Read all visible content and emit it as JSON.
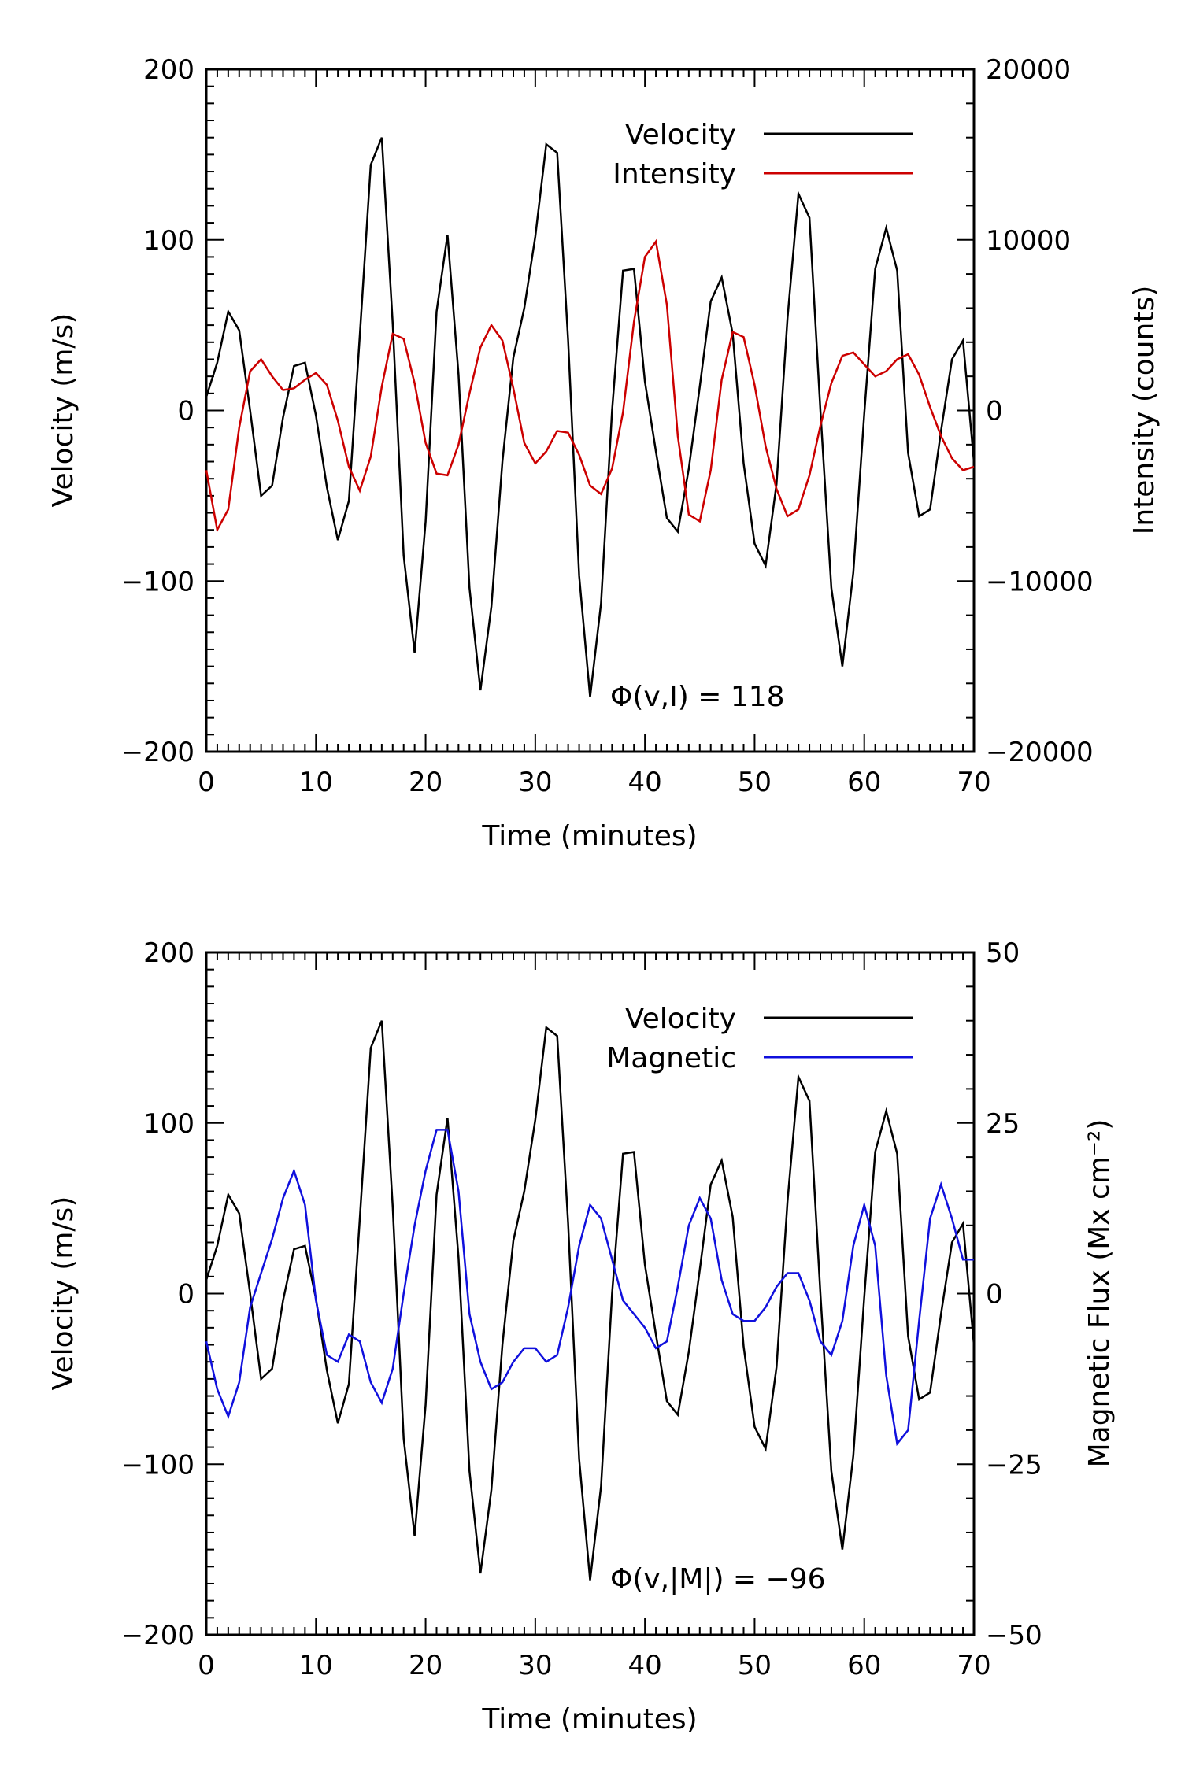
{
  "chart_data": [
    {
      "type": "line",
      "xlabel": "Time (minutes)",
      "ylabel": "Velocity (m/s)",
      "y2label": "Intensity (counts)",
      "xlim": [
        0,
        70
      ],
      "ylim": [
        -200,
        200
      ],
      "y2lim": [
        -20000,
        20000
      ],
      "xticks": [
        0,
        10,
        20,
        30,
        40,
        50,
        60,
        70
      ],
      "xtick_labels": [
        "0",
        "10",
        "20",
        "30",
        "40",
        "50",
        "60",
        "70"
      ],
      "yticks": [
        -200,
        -100,
        0,
        100,
        200
      ],
      "ytick_labels": [
        "−200",
        "−100",
        "0",
        "100",
        "200"
      ],
      "y2ticks": [
        -20000,
        -10000,
        0,
        10000,
        20000
      ],
      "y2tick_labels": [
        "−20000",
        "−10000",
        "0",
        "10000",
        "20000"
      ],
      "annotation": "Φ(v,I) = 118",
      "legend_position": "top-right",
      "series": [
        {
          "name": "Velocity",
          "color": "#000000",
          "axis": "left",
          "x": [
            0,
            1,
            2,
            3,
            4,
            5,
            6,
            7,
            8,
            9,
            10,
            11,
            12,
            13,
            14,
            15,
            16,
            17,
            18,
            19,
            20,
            21,
            22,
            23,
            24,
            25,
            26,
            27,
            28,
            29,
            30,
            31,
            32,
            33,
            34,
            35,
            36,
            37,
            38,
            39,
            40,
            41,
            42,
            43,
            44,
            45,
            46,
            47,
            48,
            49,
            50,
            51,
            52,
            53,
            54,
            55,
            56,
            57,
            58,
            59,
            60,
            61,
            62,
            63,
            64,
            65,
            66,
            67,
            68,
            69,
            70
          ],
          "values": [
            8,
            28,
            58,
            47,
            0,
            -50,
            -44,
            -4,
            26,
            28,
            -3,
            -45,
            -76,
            -53,
            44,
            144,
            160,
            51,
            -85,
            -142,
            -65,
            58,
            103,
            21,
            -104,
            -164,
            -115,
            -30,
            31,
            60,
            102,
            156,
            151,
            41,
            -97,
            -168,
            -113,
            0,
            82,
            83,
            17,
            -24,
            -63,
            -71,
            -34,
            14,
            64,
            78,
            45,
            -31,
            -78,
            -91,
            -43,
            54,
            127,
            113,
            0,
            -104,
            -150,
            -95,
            -2,
            83,
            107,
            82,
            -25,
            -62,
            -58,
            -12,
            30,
            41,
            -30
          ]
        },
        {
          "name": "Intensity",
          "color": "#cc0000",
          "axis": "right",
          "x": [
            0,
            1,
            2,
            3,
            4,
            5,
            6,
            7,
            8,
            9,
            10,
            11,
            12,
            13,
            14,
            15,
            16,
            17,
            18,
            19,
            20,
            21,
            22,
            23,
            24,
            25,
            26,
            27,
            28,
            29,
            30,
            31,
            32,
            33,
            34,
            35,
            36,
            37,
            38,
            39,
            40,
            41,
            42,
            43,
            44,
            45,
            46,
            47,
            48,
            49,
            50,
            51,
            52,
            53,
            54,
            55,
            56,
            57,
            58,
            59,
            60,
            61,
            62,
            63,
            64,
            65,
            66,
            67,
            68,
            69,
            70
          ],
          "values": [
            -3500,
            -7000,
            -5800,
            -1000,
            2300,
            3000,
            2000,
            1200,
            1300,
            1800,
            2200,
            1500,
            -600,
            -3300,
            -4700,
            -2700,
            1400,
            4500,
            4200,
            1600,
            -1900,
            -3700,
            -3800,
            -2000,
            1000,
            3700,
            5000,
            4100,
            1300,
            -1900,
            -3100,
            -2400,
            -1200,
            -1300,
            -2600,
            -4400,
            -4900,
            -3400,
            -100,
            5200,
            9000,
            9900,
            6200,
            -1500,
            -6100,
            -6500,
            -3500,
            1800,
            4600,
            4300,
            1500,
            -2100,
            -4600,
            -6200,
            -5800,
            -3800,
            -900,
            1600,
            3200,
            3400,
            2700,
            2000,
            2300,
            3000,
            3300,
            2100,
            200,
            -1500,
            -2800,
            -3500,
            -3300
          ]
        }
      ]
    },
    {
      "type": "line",
      "xlabel": "Time (minutes)",
      "ylabel": "Velocity (m/s)",
      "y2label": "Magnetic Flux (Mx cm⁻²)",
      "xlim": [
        0,
        70
      ],
      "ylim": [
        -200,
        200
      ],
      "y2lim": [
        -50,
        50
      ],
      "xticks": [
        0,
        10,
        20,
        30,
        40,
        50,
        60,
        70
      ],
      "xtick_labels": [
        "0",
        "10",
        "20",
        "30",
        "40",
        "50",
        "60",
        "70"
      ],
      "yticks": [
        -200,
        -100,
        0,
        100,
        200
      ],
      "ytick_labels": [
        "−200",
        "−100",
        "0",
        "100",
        "200"
      ],
      "y2ticks": [
        -50,
        -25,
        0,
        25,
        50
      ],
      "y2tick_labels": [
        "−50",
        "−25",
        "0",
        "25",
        "50"
      ],
      "annotation": "Φ(v,|M|) = −96",
      "legend_position": "top-right",
      "series": [
        {
          "name": "Velocity",
          "color": "#000000",
          "axis": "left",
          "x": [
            0,
            1,
            2,
            3,
            4,
            5,
            6,
            7,
            8,
            9,
            10,
            11,
            12,
            13,
            14,
            15,
            16,
            17,
            18,
            19,
            20,
            21,
            22,
            23,
            24,
            25,
            26,
            27,
            28,
            29,
            30,
            31,
            32,
            33,
            34,
            35,
            36,
            37,
            38,
            39,
            40,
            41,
            42,
            43,
            44,
            45,
            46,
            47,
            48,
            49,
            50,
            51,
            52,
            53,
            54,
            55,
            56,
            57,
            58,
            59,
            60,
            61,
            62,
            63,
            64,
            65,
            66,
            67,
            68,
            69,
            70
          ],
          "values": [
            8,
            28,
            58,
            47,
            0,
            -50,
            -44,
            -4,
            26,
            28,
            -3,
            -45,
            -76,
            -53,
            44,
            144,
            160,
            51,
            -85,
            -142,
            -65,
            58,
            103,
            21,
            -104,
            -164,
            -115,
            -30,
            31,
            60,
            102,
            156,
            151,
            41,
            -97,
            -168,
            -113,
            0,
            82,
            83,
            17,
            -24,
            -63,
            -71,
            -34,
            14,
            64,
            78,
            45,
            -31,
            -78,
            -91,
            -43,
            54,
            127,
            113,
            0,
            -104,
            -150,
            -95,
            -2,
            83,
            107,
            82,
            -25,
            -62,
            -58,
            -12,
            30,
            41,
            -30
          ]
        },
        {
          "name": "Magnetic",
          "color": "#1010dd",
          "axis": "right",
          "x": [
            0,
            1,
            2,
            3,
            4,
            5,
            6,
            7,
            8,
            9,
            10,
            11,
            12,
            13,
            14,
            15,
            16,
            17,
            18,
            19,
            20,
            21,
            22,
            23,
            24,
            25,
            26,
            27,
            28,
            29,
            30,
            31,
            32,
            33,
            34,
            35,
            36,
            37,
            38,
            39,
            40,
            41,
            42,
            43,
            44,
            45,
            46,
            47,
            48,
            49,
            50,
            51,
            52,
            53,
            54,
            55,
            56,
            57,
            58,
            59,
            60,
            61,
            62,
            63,
            64,
            65,
            66,
            67,
            68,
            69,
            70
          ],
          "values": [
            -7,
            -14,
            -18,
            -13,
            -2,
            3,
            8,
            14,
            18,
            13,
            -1,
            -9,
            -10,
            -6,
            -7,
            -13,
            -16,
            -11,
            0,
            10,
            18,
            24,
            24,
            15,
            -3,
            -10,
            -14,
            -13,
            -10,
            -8,
            -8,
            -10,
            -9,
            -2,
            7,
            13,
            11,
            5,
            -1,
            -3,
            -5,
            -8,
            -7,
            1,
            10,
            14,
            11,
            2,
            -3,
            -4,
            -4,
            -2,
            1,
            3,
            3,
            -1,
            -7,
            -9,
            -4,
            7,
            13,
            7,
            -12,
            -22,
            -20,
            -4,
            11,
            16,
            11,
            5,
            5
          ]
        }
      ]
    }
  ]
}
